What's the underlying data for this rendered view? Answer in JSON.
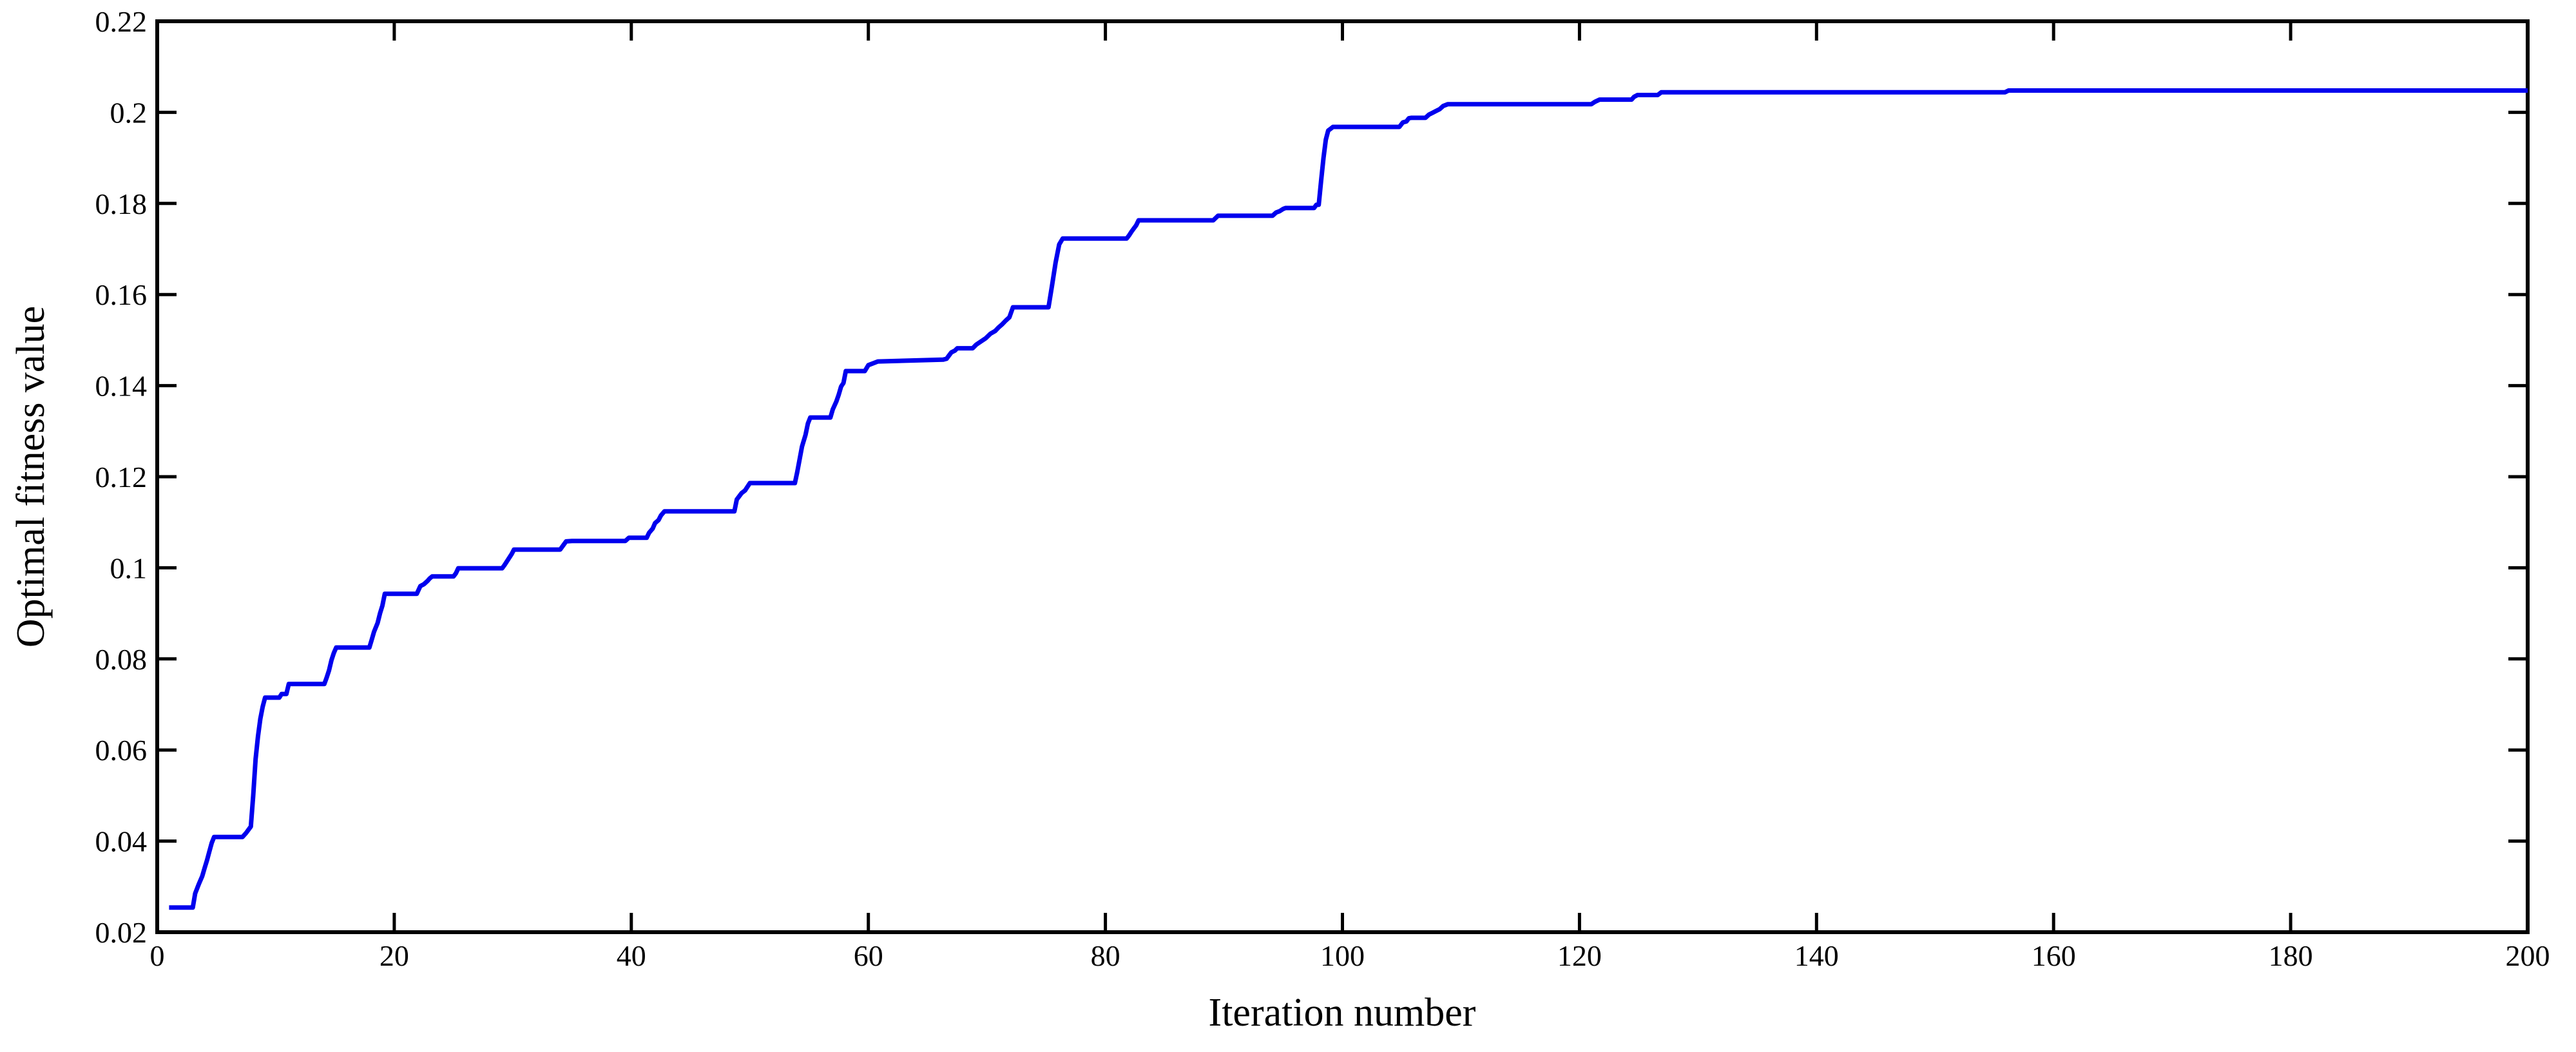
{
  "page": {
    "background_color": "#ffffff"
  },
  "chart_data": {
    "type": "line",
    "title": "",
    "xlabel": "Iteration number",
    "ylabel": "Optimal fitness value",
    "xlim": [
      0,
      200
    ],
    "ylim": [
      0.02,
      0.22
    ],
    "grid": false,
    "box": true,
    "legend": null,
    "axis_color": "#000000",
    "line_color": "#0000ee",
    "x_ticks": [
      0,
      20,
      40,
      60,
      80,
      100,
      120,
      140,
      160,
      180,
      200
    ],
    "x_tick_labels": [
      "0",
      "20",
      "40",
      "60",
      "80",
      "100",
      "120",
      "140",
      "160",
      "180",
      "200"
    ],
    "y_ticks": [
      0.02,
      0.04,
      0.06,
      0.08,
      0.1,
      0.12,
      0.14,
      0.16,
      0.18,
      0.2,
      0.22
    ],
    "y_tick_labels": [
      "0.02",
      "0.04",
      "0.06",
      "0.08",
      "0.1",
      "0.12",
      "0.14",
      "0.16",
      "0.18",
      "0.2",
      "0.22"
    ],
    "series": [
      {
        "name": "Optimal fitness value",
        "color": "#0000ee",
        "points": [
          [
            1,
            0.0254
          ],
          [
            3,
            0.0254
          ],
          [
            3.2,
            0.0285
          ],
          [
            3.5,
            0.0305
          ],
          [
            3.8,
            0.0323
          ],
          [
            4,
            0.0341
          ],
          [
            4.2,
            0.0358
          ],
          [
            4.4,
            0.0377
          ],
          [
            4.6,
            0.0396
          ],
          [
            4.8,
            0.0409
          ],
          [
            7.2,
            0.0409
          ],
          [
            7.5,
            0.0418
          ],
          [
            7.9,
            0.0432
          ],
          [
            8.1,
            0.05
          ],
          [
            8.3,
            0.058
          ],
          [
            8.5,
            0.063
          ],
          [
            8.7,
            0.0668
          ],
          [
            8.9,
            0.0695
          ],
          [
            9.1,
            0.0715
          ],
          [
            10.3,
            0.0715
          ],
          [
            10.5,
            0.0723
          ],
          [
            10.9,
            0.0723
          ],
          [
            11.1,
            0.0745
          ],
          [
            14.1,
            0.0745
          ],
          [
            14.3,
            0.0759
          ],
          [
            14.5,
            0.0775
          ],
          [
            14.7,
            0.0797
          ],
          [
            14.9,
            0.0813
          ],
          [
            15.1,
            0.0825
          ],
          [
            17.9,
            0.0825
          ],
          [
            18.1,
            0.0842
          ],
          [
            18.3,
            0.086
          ],
          [
            18.6,
            0.0879
          ],
          [
            18.8,
            0.09
          ],
          [
            19,
            0.0917
          ],
          [
            19.2,
            0.0943
          ],
          [
            21.9,
            0.0943
          ],
          [
            22.2,
            0.096
          ],
          [
            22.5,
            0.0964
          ],
          [
            22.8,
            0.0971
          ],
          [
            23,
            0.0977
          ],
          [
            23.2,
            0.0981
          ],
          [
            25,
            0.0981
          ],
          [
            25.2,
            0.0988
          ],
          [
            25.4,
            0.0999
          ],
          [
            29.1,
            0.0999
          ],
          [
            29.3,
            0.1006
          ],
          [
            29.6,
            0.1018
          ],
          [
            29.9,
            0.103
          ],
          [
            30.1,
            0.104
          ],
          [
            34,
            0.104
          ],
          [
            34.5,
            0.1058
          ],
          [
            35,
            0.1059
          ],
          [
            39.5,
            0.1059
          ],
          [
            39.8,
            0.1066
          ],
          [
            41.3,
            0.1066
          ],
          [
            41.5,
            0.1077
          ],
          [
            41.8,
            0.1086
          ],
          [
            42,
            0.1098
          ],
          [
            42.3,
            0.1105
          ],
          [
            42.5,
            0.1115
          ],
          [
            42.8,
            0.1124
          ],
          [
            48.7,
            0.1124
          ],
          [
            48.9,
            0.115
          ],
          [
            49.3,
            0.1164
          ],
          [
            49.6,
            0.117
          ],
          [
            50,
            0.1186
          ],
          [
            53.8,
            0.1186
          ],
          [
            54,
            0.121
          ],
          [
            54.2,
            0.1238
          ],
          [
            54.4,
            0.1266
          ],
          [
            54.7,
            0.1292
          ],
          [
            54.9,
            0.1317
          ],
          [
            55.1,
            0.133
          ],
          [
            56.8,
            0.133
          ],
          [
            57,
            0.1348
          ],
          [
            57.3,
            0.1365
          ],
          [
            57.5,
            0.138
          ],
          [
            57.7,
            0.1398
          ],
          [
            57.9,
            0.1406
          ],
          [
            58.1,
            0.1432
          ],
          [
            59.7,
            0.1432
          ],
          [
            60,
            0.1445
          ],
          [
            60.8,
            0.1453
          ],
          [
            66.3,
            0.1457
          ],
          [
            66.6,
            0.1459
          ],
          [
            67,
            0.1473
          ],
          [
            67.3,
            0.1477
          ],
          [
            67.5,
            0.1482
          ],
          [
            68.8,
            0.1482
          ],
          [
            69.1,
            0.149
          ],
          [
            69.5,
            0.1497
          ],
          [
            69.9,
            0.1504
          ],
          [
            70.3,
            0.1514
          ],
          [
            70.7,
            0.152
          ],
          [
            71,
            0.1528
          ],
          [
            71.3,
            0.1535
          ],
          [
            71.6,
            0.1543
          ],
          [
            71.9,
            0.155
          ],
          [
            72.2,
            0.1572
          ],
          [
            75.2,
            0.1572
          ],
          [
            75.5,
            0.162
          ],
          [
            75.8,
            0.167
          ],
          [
            76.1,
            0.171
          ],
          [
            76.4,
            0.1723
          ],
          [
            81.8,
            0.1723
          ],
          [
            82,
            0.173
          ],
          [
            82.2,
            0.1738
          ],
          [
            82.4,
            0.1745
          ],
          [
            82.6,
            0.1752
          ],
          [
            82.8,
            0.1763
          ],
          [
            89.1,
            0.1763
          ],
          [
            89.5,
            0.1773
          ],
          [
            94.1,
            0.1773
          ],
          [
            94.4,
            0.178
          ],
          [
            94.7,
            0.1783
          ],
          [
            95,
            0.1788
          ],
          [
            95.2,
            0.179
          ],
          [
            97.6,
            0.179
          ],
          [
            97.8,
            0.1797
          ],
          [
            98,
            0.1797
          ],
          [
            98.2,
            0.185
          ],
          [
            98.4,
            0.19
          ],
          [
            98.6,
            0.194
          ],
          [
            98.8,
            0.196
          ],
          [
            99,
            0.1964
          ],
          [
            99.2,
            0.1968
          ],
          [
            104.8,
            0.1968
          ],
          [
            105.1,
            0.1978
          ],
          [
            105.4,
            0.198
          ],
          [
            105.6,
            0.1987
          ],
          [
            105.8,
            0.1988
          ],
          [
            107,
            0.1988
          ],
          [
            107.3,
            0.1995
          ],
          [
            107.6,
            0.1999
          ],
          [
            107.9,
            0.2003
          ],
          [
            108.2,
            0.2007
          ],
          [
            108.5,
            0.2014
          ],
          [
            108.9,
            0.2018
          ],
          [
            121,
            0.2018
          ],
          [
            121.3,
            0.2023
          ],
          [
            121.7,
            0.2028
          ],
          [
            124.4,
            0.2028
          ],
          [
            124.6,
            0.2034
          ],
          [
            124.9,
            0.2038
          ],
          [
            126.6,
            0.2038
          ],
          [
            126.9,
            0.2044
          ],
          [
            155.9,
            0.2044
          ],
          [
            156.2,
            0.2048
          ],
          [
            200,
            0.2048
          ]
        ]
      }
    ]
  }
}
